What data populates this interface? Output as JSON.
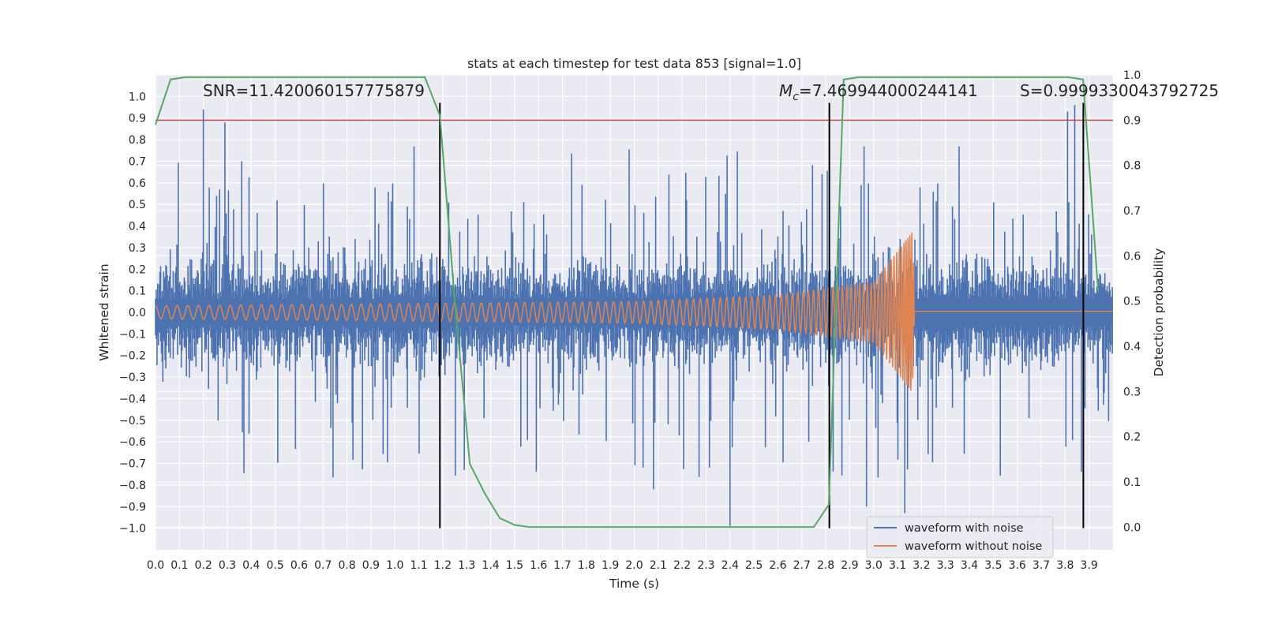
{
  "chart_data": {
    "type": "line",
    "title": "stats at each timestep for test data 853 [signal=1.0]",
    "xlabel": "Time (s)",
    "ylabel": "Whitened strain",
    "y2label": "Detection probability",
    "xlim": [
      0.0,
      4.0
    ],
    "ylim": [
      -1.1,
      1.1
    ],
    "y2lim": [
      -0.05,
      1.0
    ],
    "grid": true,
    "legend_position": "lower-right",
    "x_ticks": [
      "0.0",
      "0.1",
      "0.2",
      "0.3",
      "0.4",
      "0.5",
      "0.6",
      "0.7",
      "0.8",
      "0.9",
      "1.0",
      "1.1",
      "1.2",
      "1.3",
      "1.4",
      "1.5",
      "1.6",
      "1.7",
      "1.8",
      "1.9",
      "2.0",
      "2.1",
      "2.2",
      "2.3",
      "2.4",
      "2.5",
      "2.6",
      "2.7",
      "2.8",
      "2.9",
      "3.0",
      "3.1",
      "3.2",
      "3.3",
      "3.4",
      "3.5",
      "3.6",
      "3.7",
      "3.8",
      "3.9"
    ],
    "y_ticks": [
      "1.0",
      "0.9",
      "0.8",
      "0.7",
      "0.6",
      "0.5",
      "0.4",
      "0.3",
      "0.2",
      "0.1",
      "0.0",
      "−0.1",
      "−0.2",
      "−0.3",
      "−0.4",
      "−0.5",
      "−0.6",
      "−0.7",
      "−0.8",
      "−0.9",
      "−1.0"
    ],
    "y2_ticks": [
      "1.0",
      "0.9",
      "0.8",
      "0.7",
      "0.6",
      "0.5",
      "0.4",
      "0.3",
      "0.2",
      "0.1",
      "0.0"
    ],
    "annotations": {
      "snr": "SNR=11.420060157775879",
      "mc_symbol": "M",
      "mc_sub": "c",
      "mc_value": "=7.469944000244141",
      "s": "S=0.9999330043792725"
    },
    "legend": [
      "waveform with noise",
      "waveform without noise"
    ],
    "colors": {
      "noisy": "#4c72b0",
      "clean": "#dd8452",
      "probability": "#55a868",
      "threshold": "#c44e52",
      "markers": "#000000",
      "plot_bg": "#eaeaf2",
      "grid": "#ffffff"
    },
    "threshold_line": {
      "y2": 0.9
    },
    "vertical_markers_x": [
      1.188,
      2.815,
      3.876
    ],
    "series": [
      {
        "name": "waveform with noise",
        "render": "noise-envelope",
        "sample_points": {
          "x": [
            0.2,
            0.29,
            0.36,
            1.29,
            2.08,
            2.4,
            2.97,
            3.13,
            3.81,
            3.84
          ],
          "y": [
            0.94,
            0.88,
            0.7,
            -0.73,
            -0.82,
            -0.99,
            -0.9,
            -0.93,
            0.93,
            0.96
          ]
        }
      },
      {
        "name": "waveform without noise",
        "render": "chirp",
        "sample_points": {
          "x": [
            0.0,
            1.0,
            2.0,
            2.6,
            3.0,
            3.16,
            3.18,
            4.0
          ],
          "amplitude": [
            0.03,
            0.04,
            0.05,
            0.08,
            0.14,
            0.37,
            0.0,
            0.0
          ]
        }
      },
      {
        "name": "detection probability",
        "render": "line-right-axis",
        "x": [
          0.0,
          0.063,
          0.125,
          0.188,
          0.25,
          0.313,
          0.375,
          0.438,
          0.5,
          0.563,
          0.625,
          0.688,
          0.75,
          0.813,
          0.875,
          0.938,
          1.0,
          1.063,
          1.125,
          1.188,
          1.25,
          1.313,
          1.375,
          1.438,
          1.5,
          1.563,
          1.625,
          1.688,
          1.75,
          1.813,
          1.875,
          1.938,
          2.0,
          2.063,
          2.125,
          2.188,
          2.25,
          2.313,
          2.375,
          2.438,
          2.5,
          2.563,
          2.625,
          2.688,
          2.75,
          2.813,
          2.875,
          2.938,
          3.0,
          3.063,
          3.125,
          3.188,
          3.25,
          3.313,
          3.375,
          3.438,
          3.5,
          3.563,
          3.625,
          3.688,
          3.75,
          3.813,
          3.875,
          3.938
        ],
        "y": [
          0.89,
          0.99,
          0.995,
          0.995,
          0.995,
          0.995,
          0.995,
          0.995,
          0.995,
          0.995,
          0.995,
          0.995,
          0.995,
          0.995,
          0.995,
          0.995,
          0.995,
          0.995,
          0.995,
          0.91,
          0.5,
          0.14,
          0.075,
          0.02,
          0.005,
          0.0,
          0.0,
          0.0,
          0.0,
          0.0,
          0.0,
          0.0,
          0.0,
          0.0,
          0.0,
          0.0,
          0.0,
          0.0,
          0.0,
          0.0,
          0.0,
          0.0,
          0.0,
          0.0,
          0.0,
          0.05,
          0.99,
          0.995,
          0.995,
          0.995,
          0.995,
          0.995,
          0.995,
          0.995,
          0.995,
          0.995,
          0.995,
          0.995,
          0.995,
          0.995,
          0.995,
          0.995,
          0.99,
          0.52
        ]
      }
    ]
  }
}
